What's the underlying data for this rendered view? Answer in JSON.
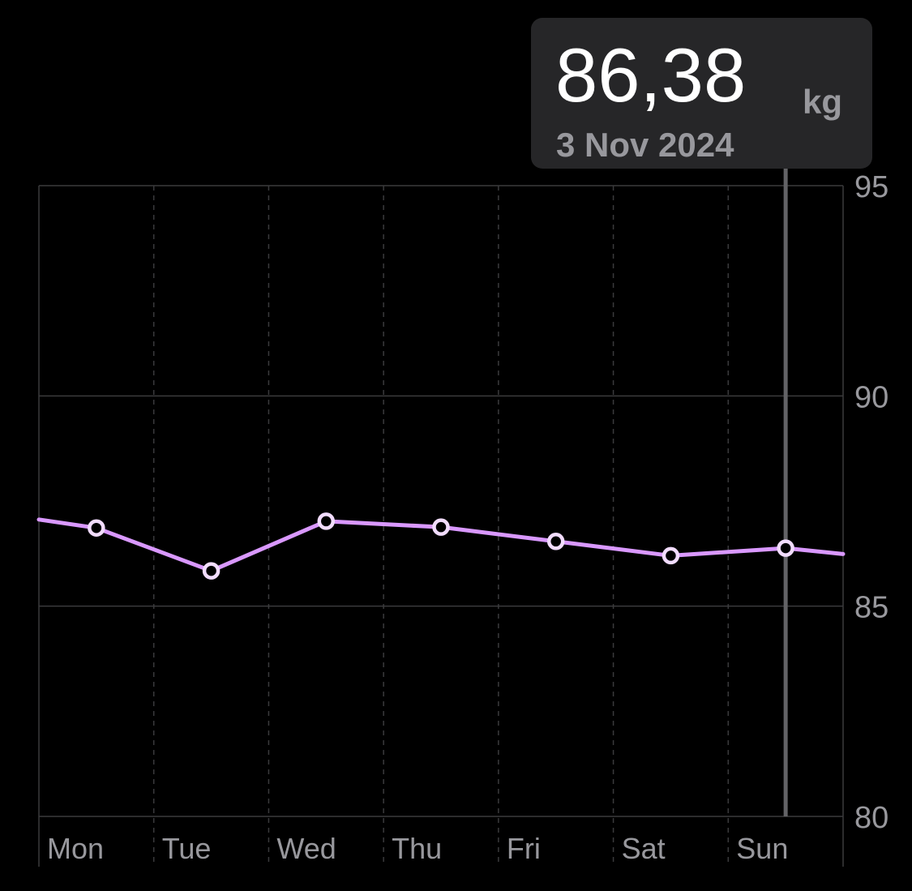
{
  "tooltip": {
    "value": "86,38",
    "unit": "kg",
    "date": "3 Nov 2024"
  },
  "colors": {
    "background": "#000000",
    "line": "#d998ff",
    "grid": "#3a3a3c",
    "axis_text": "#98989d",
    "cursor": "#636366",
    "tooltip_bg": "#262628"
  },
  "chart_data": {
    "type": "line",
    "categories": [
      "Mon",
      "Tue",
      "Wed",
      "Thu",
      "Fri",
      "Sat",
      "Sun"
    ],
    "series": [
      {
        "values": [
          86.86,
          85.84,
          87.02,
          86.88,
          86.54,
          86.2,
          86.38
        ],
        "lead_in": 87.06,
        "trail_out": 86.24
      }
    ],
    "ylim": [
      80,
      95
    ],
    "yticks": [
      95,
      90,
      85,
      80
    ],
    "ytick_labels": [
      "95",
      "90",
      "85",
      "80"
    ],
    "selected_category": "Sun",
    "grid": true
  }
}
